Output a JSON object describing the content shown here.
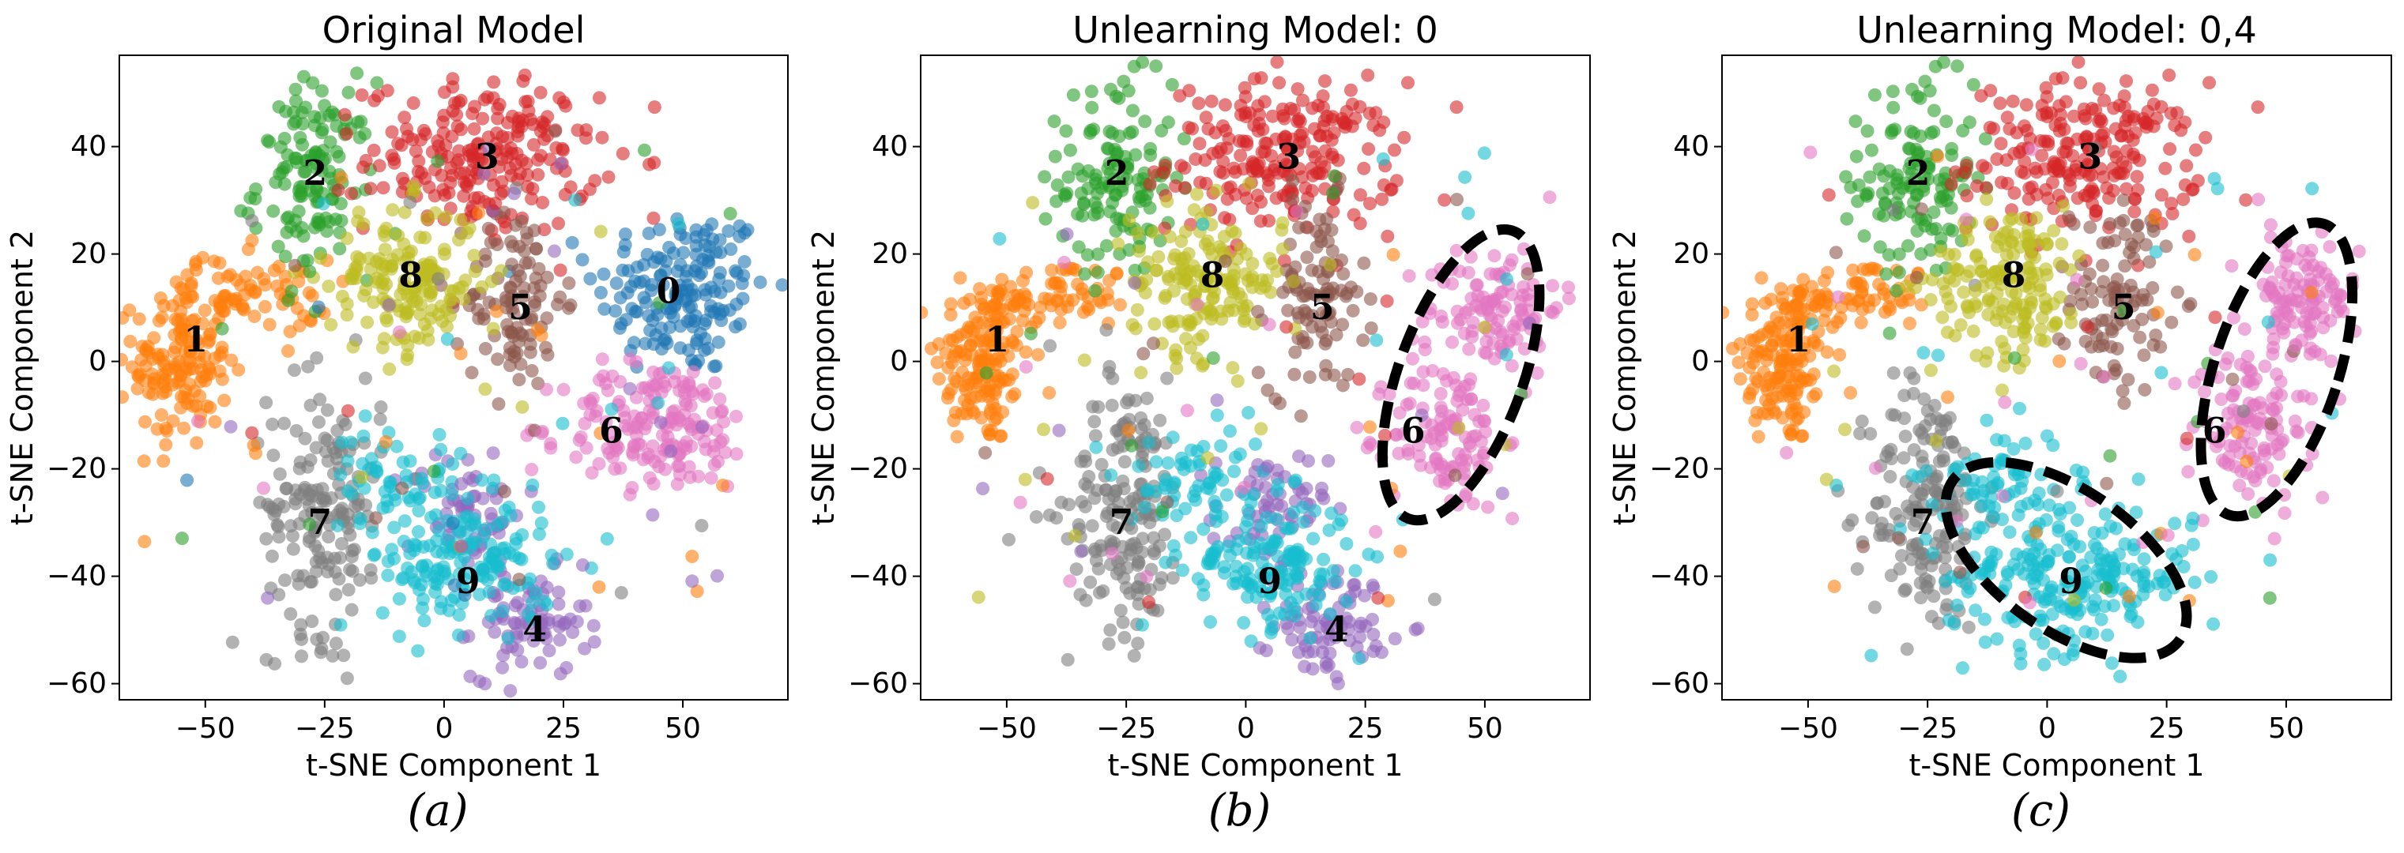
{
  "chart_data": [
    {
      "type": "scatter",
      "title": "Original Model",
      "xlabel": "t-SNE Component 1",
      "ylabel": "t-SNE Component 2",
      "caption": "(a)",
      "xlim": [
        -68,
        72
      ],
      "ylim": [
        -63,
        57
      ],
      "xticks": [
        -50,
        -25,
        0,
        25,
        50
      ],
      "yticks": [
        40,
        20,
        0,
        -20,
        -40,
        -60
      ],
      "grid": false,
      "clusters": [
        {
          "label": "0",
          "center": [
            50,
            13
          ],
          "spread": [
            9,
            8
          ],
          "count": 170,
          "color": "#1f77b4",
          "label_pos": [
            47,
            13
          ]
        },
        {
          "label": "1",
          "center": [
            -55,
            0
          ],
          "spread": [
            5,
            8
          ],
          "count": 150,
          "color": "#ff7f0e",
          "label_pos": [
            -52,
            4
          ]
        },
        {
          "label": "1",
          "center": [
            -40,
            12
          ],
          "spread": [
            8,
            3.5
          ],
          "count": 70,
          "color": "#ff7f0e",
          "label_pos": null
        },
        {
          "label": "2",
          "center": [
            -27,
            34
          ],
          "spread": [
            6,
            9
          ],
          "count": 130,
          "color": "#2ca02c",
          "label_pos": [
            -27,
            35
          ]
        },
        {
          "label": "3",
          "center": [
            8,
            38
          ],
          "spread": [
            12,
            7
          ],
          "count": 220,
          "color": "#d62728",
          "label_pos": [
            9,
            38
          ]
        },
        {
          "label": "4",
          "center": [
            18,
            -49
          ],
          "spread": [
            6,
            5
          ],
          "count": 80,
          "color": "#9467bd",
          "label_pos": [
            19,
            -50
          ]
        },
        {
          "label": "4",
          "center": [
            5,
            -28
          ],
          "spread": [
            6,
            6
          ],
          "count": 60,
          "color": "#9467bd",
          "label_pos": null
        },
        {
          "label": "5",
          "center": [
            15,
            12
          ],
          "spread": [
            5,
            9
          ],
          "count": 100,
          "color": "#8c564b",
          "label_pos": [
            16,
            10
          ]
        },
        {
          "label": "6",
          "center": [
            45,
            -12
          ],
          "spread": [
            10,
            6
          ],
          "count": 170,
          "color": "#e377c2",
          "label_pos": [
            35,
            -13
          ]
        },
        {
          "label": "7",
          "center": [
            -25,
            -27
          ],
          "spread": [
            6,
            12
          ],
          "count": 170,
          "color": "#7f7f7f",
          "label_pos": [
            -26,
            -30
          ]
        },
        {
          "label": "8",
          "center": [
            -8,
            15
          ],
          "spread": [
            8,
            7
          ],
          "count": 160,
          "color": "#bcbd22",
          "label_pos": [
            -7,
            16
          ]
        },
        {
          "label": "9",
          "center": [
            5,
            -38
          ],
          "spread": [
            9,
            6
          ],
          "count": 150,
          "color": "#17becf",
          "label_pos": [
            5,
            -41
          ]
        },
        {
          "label": "9",
          "center": [
            -10,
            -22
          ],
          "spread": [
            7,
            5
          ],
          "count": 60,
          "color": "#17becf",
          "label_pos": null
        }
      ],
      "ellipses": []
    },
    {
      "type": "scatter",
      "title": "Unlearning Model: 0",
      "xlabel": "t-SNE Component 1",
      "ylabel": "t-SNE Component 2",
      "caption": "(b)",
      "xlim": [
        -68,
        72
      ],
      "ylim": [
        -63,
        57
      ],
      "xticks": [
        -50,
        -25,
        0,
        25,
        50
      ],
      "yticks": [
        40,
        20,
        0,
        -20,
        -40,
        -60
      ],
      "grid": false,
      "clusters": [
        {
          "label": "1",
          "center": [
            -55,
            0
          ],
          "spread": [
            5,
            8
          ],
          "count": 150,
          "color": "#ff7f0e",
          "label_pos": [
            -52,
            4
          ]
        },
        {
          "label": "1",
          "center": [
            -40,
            12
          ],
          "spread": [
            8,
            3.5
          ],
          "count": 70,
          "color": "#ff7f0e",
          "label_pos": null
        },
        {
          "label": "2",
          "center": [
            -27,
            34
          ],
          "spread": [
            6,
            9
          ],
          "count": 130,
          "color": "#2ca02c",
          "label_pos": [
            -27,
            35
          ]
        },
        {
          "label": "3",
          "center": [
            8,
            38
          ],
          "spread": [
            12,
            7
          ],
          "count": 220,
          "color": "#d62728",
          "label_pos": [
            9,
            38
          ]
        },
        {
          "label": "4",
          "center": [
            18,
            -49
          ],
          "spread": [
            6,
            5
          ],
          "count": 80,
          "color": "#9467bd",
          "label_pos": [
            19,
            -50
          ]
        },
        {
          "label": "4",
          "center": [
            5,
            -28
          ],
          "spread": [
            6,
            6
          ],
          "count": 60,
          "color": "#9467bd",
          "label_pos": null
        },
        {
          "label": "5",
          "center": [
            15,
            12
          ],
          "spread": [
            5,
            9
          ],
          "count": 100,
          "color": "#8c564b",
          "label_pos": [
            16,
            10
          ]
        },
        {
          "label": "6",
          "center": [
            52,
            10
          ],
          "spread": [
            7,
            6
          ],
          "count": 110,
          "color": "#e377c2",
          "label_pos": null
        },
        {
          "label": "6",
          "center": [
            42,
            -14
          ],
          "spread": [
            6,
            7
          ],
          "count": 110,
          "color": "#e377c2",
          "label_pos": [
            35,
            -13
          ]
        },
        {
          "label": "7",
          "center": [
            -25,
            -27
          ],
          "spread": [
            6,
            12
          ],
          "count": 170,
          "color": "#7f7f7f",
          "label_pos": [
            -26,
            -30
          ]
        },
        {
          "label": "8",
          "center": [
            -8,
            15
          ],
          "spread": [
            8,
            7
          ],
          "count": 160,
          "color": "#bcbd22",
          "label_pos": [
            -7,
            16
          ]
        },
        {
          "label": "9",
          "center": [
            5,
            -38
          ],
          "spread": [
            9,
            6
          ],
          "count": 150,
          "color": "#17becf",
          "label_pos": [
            5,
            -41
          ]
        },
        {
          "label": "9",
          "center": [
            -10,
            -22
          ],
          "spread": [
            7,
            5
          ],
          "count": 60,
          "color": "#17becf",
          "label_pos": null
        }
      ],
      "ellipses": [
        {
          "cx": 45,
          "cy": -2.5,
          "rx": 13,
          "ry": 28.5,
          "angle": 20
        }
      ]
    },
    {
      "type": "scatter",
      "title": "Unlearning Model: 0,4",
      "xlabel": "t-SNE Component 1",
      "ylabel": "t-SNE Component 2",
      "caption": "(c)",
      "xlim": [
        -68,
        72
      ],
      "ylim": [
        -63,
        57
      ],
      "xticks": [
        -50,
        -25,
        0,
        25,
        50
      ],
      "yticks": [
        40,
        20,
        0,
        -20,
        -40,
        -60
      ],
      "grid": false,
      "clusters": [
        {
          "label": "1",
          "center": [
            -55,
            0
          ],
          "spread": [
            5,
            8
          ],
          "count": 150,
          "color": "#ff7f0e",
          "label_pos": [
            -52,
            4
          ]
        },
        {
          "label": "1",
          "center": [
            -40,
            12
          ],
          "spread": [
            8,
            3.5
          ],
          "count": 70,
          "color": "#ff7f0e",
          "label_pos": null
        },
        {
          "label": "2",
          "center": [
            -27,
            34
          ],
          "spread": [
            6,
            9
          ],
          "count": 130,
          "color": "#2ca02c",
          "label_pos": [
            -27,
            35
          ]
        },
        {
          "label": "3",
          "center": [
            8,
            38
          ],
          "spread": [
            12,
            7
          ],
          "count": 220,
          "color": "#d62728",
          "label_pos": [
            9,
            38
          ]
        },
        {
          "label": "5",
          "center": [
            15,
            12
          ],
          "spread": [
            5,
            9
          ],
          "count": 100,
          "color": "#8c564b",
          "label_pos": [
            16,
            10
          ]
        },
        {
          "label": "6",
          "center": [
            53,
            11
          ],
          "spread": [
            6,
            6
          ],
          "count": 110,
          "color": "#e377c2",
          "label_pos": null
        },
        {
          "label": "6",
          "center": [
            42,
            -12
          ],
          "spread": [
            6,
            8
          ],
          "count": 110,
          "color": "#e377c2",
          "label_pos": [
            35,
            -13
          ]
        },
        {
          "label": "7",
          "center": [
            -25,
            -27
          ],
          "spread": [
            6,
            12
          ],
          "count": 170,
          "color": "#7f7f7f",
          "label_pos": [
            -26,
            -30
          ]
        },
        {
          "label": "8",
          "center": [
            -8,
            15
          ],
          "spread": [
            8,
            7
          ],
          "count": 160,
          "color": "#bcbd22",
          "label_pos": [
            -7,
            16
          ]
        },
        {
          "label": "9",
          "center": [
            5,
            -40
          ],
          "spread": [
            13,
            7
          ],
          "count": 230,
          "color": "#17becf",
          "label_pos": [
            5,
            -41
          ]
        },
        {
          "label": "9",
          "center": [
            -10,
            -22
          ],
          "spread": [
            7,
            5
          ],
          "count": 60,
          "color": "#17becf",
          "label_pos": null
        }
      ],
      "ellipses": [
        {
          "cx": 48,
          "cy": -1.5,
          "rx": 13,
          "ry": 28.5,
          "angle": 18
        },
        {
          "cx": 4,
          "cy": -37,
          "rx": 29,
          "ry": 13,
          "angle": 35
        }
      ]
    }
  ]
}
